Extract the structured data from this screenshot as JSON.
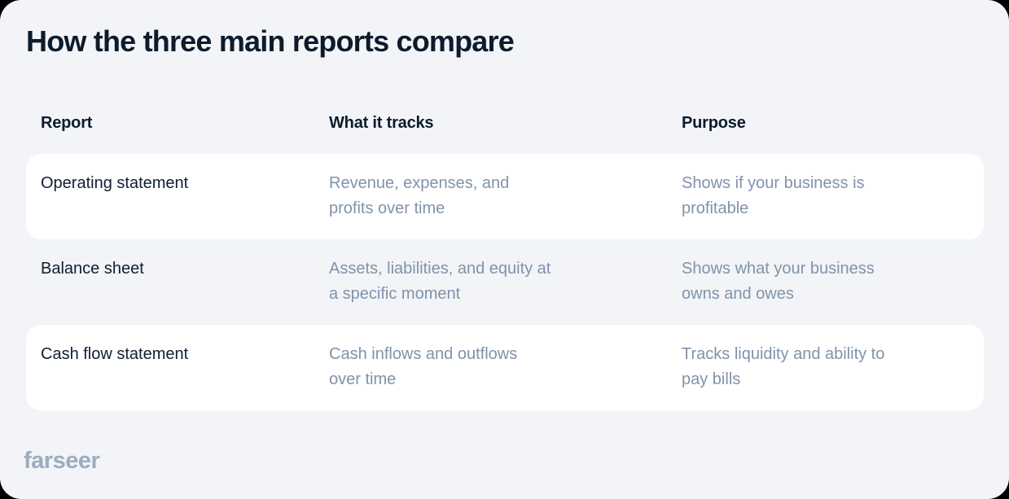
{
  "page": {
    "title": "How the three main reports compare"
  },
  "table": {
    "headers": [
      "Report",
      "What it tracks",
      "Purpose"
    ],
    "rows": [
      {
        "report": "Operating statement",
        "tracks": "Revenue, expenses, and\nprofits over time",
        "purpose": "Shows if your business is\nprofitable"
      },
      {
        "report": "Balance sheet",
        "tracks": "Assets, liabilities, and equity at\na specific moment",
        "purpose": "Shows what your business\nowns and owes"
      },
      {
        "report": "Cash flow statement",
        "tracks": "Cash inflows and outflows\nover time",
        "purpose": "Tracks liquidity and ability to\npay bills"
      }
    ]
  },
  "footer": {
    "logo_text": "farseer"
  },
  "colors": {
    "card_bg": "#F2F4F7",
    "row_bg": "#FFFFFF",
    "heading": "#0D1B2C",
    "primary_text": "#101F33",
    "secondary_text": "#8093AB",
    "logo_color": "#9CACC2"
  },
  "chart_data": {
    "type": "table",
    "title": "How the three main reports compare",
    "columns": [
      "Report",
      "What it tracks",
      "Purpose"
    ],
    "rows": [
      [
        "Operating statement",
        "Revenue, expenses, and profits over time",
        "Shows if your business is profitable"
      ],
      [
        "Balance sheet",
        "Assets, liabilities, and equity at a specific moment",
        "Shows what your business owns and owes"
      ],
      [
        "Cash flow statement",
        "Cash inflows and outflows over time",
        "Tracks liquidity and ability to pay bills"
      ]
    ],
    "layout_hints": {
      "highlighted_rows": [
        0,
        2
      ],
      "row_style": "alternating white cards on light gray background, rounded corners"
    }
  }
}
